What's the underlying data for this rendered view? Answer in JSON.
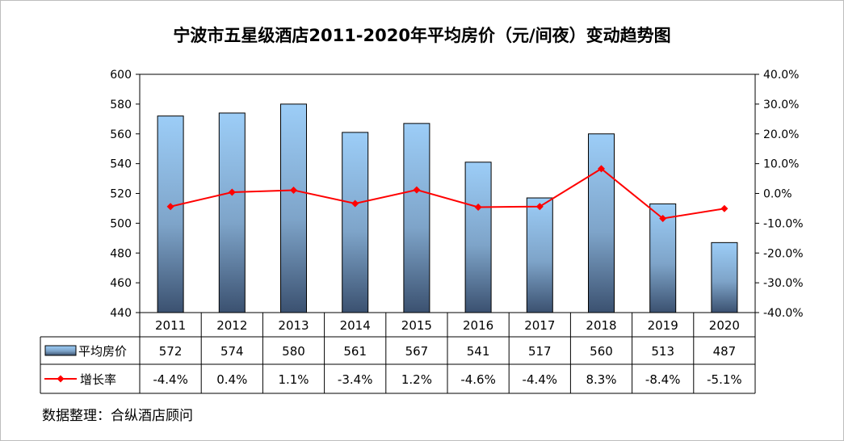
{
  "chart_data": {
    "type": "bar",
    "title": "宁波市五星级酒店2011-2020年平均房价（元/间夜）变动趋势图",
    "categories": [
      "2011",
      "2012",
      "2013",
      "2014",
      "2015",
      "2016",
      "2017",
      "2018",
      "2019",
      "2020"
    ],
    "series": [
      {
        "name": "平均房价",
        "type": "bar",
        "axis": "left",
        "values": [
          572,
          574,
          580,
          561,
          567,
          541,
          517,
          560,
          513,
          487
        ],
        "labels": [
          "572",
          "574",
          "580",
          "561",
          "567",
          "541",
          "517",
          "560",
          "513",
          "487"
        ]
      },
      {
        "name": "增长率",
        "type": "line",
        "axis": "right",
        "color": "#ff0000",
        "values": [
          -4.4,
          0.4,
          1.1,
          -3.4,
          1.2,
          -4.6,
          -4.4,
          8.3,
          -8.4,
          -5.1
        ],
        "labels": [
          "-4.4%",
          "0.4%",
          "1.1%",
          "-3.4%",
          "1.2%",
          "-4.6%",
          "-4.4%",
          "8.3%",
          "-8.4%",
          "-5.1%"
        ]
      }
    ],
    "ylim": [
      440,
      600
    ],
    "yticks": [
      "440",
      "460",
      "480",
      "500",
      "520",
      "540",
      "560",
      "580",
      "600"
    ],
    "y2lim": [
      -40,
      40
    ],
    "y2ticks": [
      "-40.0%",
      "-30.0%",
      "-20.0%",
      "-10.0%",
      "0.0%",
      "10.0%",
      "20.0%",
      "30.0%",
      "40.0%"
    ],
    "data_table": true,
    "grid": false,
    "source_note": "数据整理：合纵酒店顾问"
  }
}
